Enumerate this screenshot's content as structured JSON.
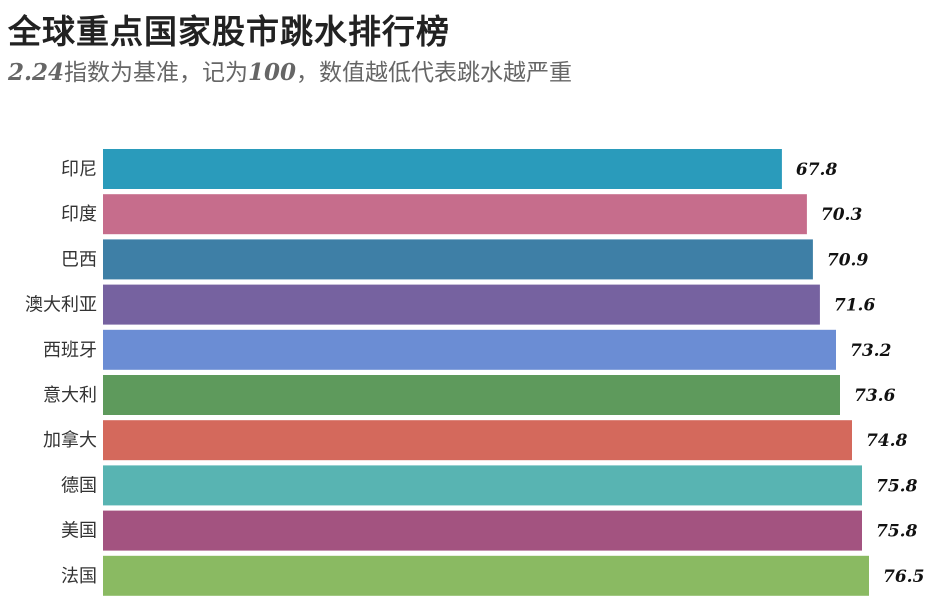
{
  "title": "全球重点国家股市跳水排行榜",
  "subtitle": {
    "part1": "2.24",
    "part2": "指数为基准，记为",
    "part3": "100",
    "part4": "，数值越低代表跳水越严重"
  },
  "chart_data": {
    "type": "bar",
    "orientation": "horizontal",
    "categories": [
      "印尼",
      "印度",
      "巴西",
      "澳大利亚",
      "西班牙",
      "意大利",
      "加拿大",
      "德国",
      "美国",
      "法国"
    ],
    "values": [
      67.8,
      70.3,
      70.9,
      71.6,
      73.2,
      73.6,
      74.8,
      75.8,
      75.8,
      76.5
    ],
    "value_labels": [
      "67.8",
      "70.3",
      "70.9",
      "71.6",
      "73.2",
      "73.6",
      "74.8",
      "75.8",
      "75.8",
      "76.5"
    ],
    "colors": [
      "#2a9bbb",
      "#c66d8c",
      "#3e7fa6",
      "#7662a0",
      "#6b8dd4",
      "#5e9a5c",
      "#d4695c",
      "#58b4b2",
      "#a35380",
      "#8aba62"
    ],
    "xlim": [
      0,
      76.5
    ],
    "grid": false,
    "legend": "none"
  }
}
